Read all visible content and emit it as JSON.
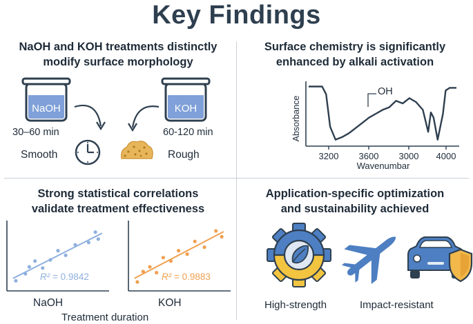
{
  "title": "Key Findings",
  "q1": {
    "heading_line1": "NaOH and KOH treatments distinctly",
    "heading_line2": "modify surface morphology",
    "beaker_left_label": "NaOH",
    "beaker_right_label": "KOH",
    "time_left": "30–60 min",
    "time_right": "60-120 min",
    "result_left": "Smooth",
    "result_right": "Rough",
    "colors": {
      "naoh_liquid": "#7fa0d8",
      "koh_liquid": "#7fa0d8",
      "powder": "#e8b65a"
    }
  },
  "q2": {
    "heading_line1": "Surface chemistry is significantly",
    "heading_line2": "enhanced by alkali activation",
    "peak_label": "OH",
    "chart_data": {
      "type": "line",
      "xlabel": "Wavenumbar",
      "ylabel": "Absorbance",
      "xticks": [
        "3200",
        "3600",
        "3000",
        "4000"
      ],
      "series": [
        {
          "x": [
            3100,
            3150,
            3200,
            3230,
            3260,
            3300,
            3350,
            3400,
            3450,
            3500,
            3550,
            3600,
            3650,
            3700,
            3750,
            3800,
            3850,
            3900,
            3950,
            3990,
            4010,
            4030,
            4060,
            4100,
            4120,
            4150,
            4200
          ],
          "y": [
            0.92,
            0.92,
            0.92,
            0.8,
            0.3,
            0.1,
            0.14,
            0.2,
            0.28,
            0.36,
            0.44,
            0.5,
            0.56,
            0.6,
            0.7,
            0.66,
            0.74,
            0.68,
            0.56,
            0.22,
            0.52,
            0.44,
            0.1,
            0.5,
            0.86,
            0.9,
            0.9
          ]
        }
      ]
    }
  },
  "q3": {
    "heading_line1": "Strong statistical correlations",
    "heading_line2": "validate treatment effectiveness",
    "footer": "Treatment duration",
    "chart_data": [
      {
        "type": "scatter",
        "xlabel": "NaOH",
        "annotation": "= 0.9842",
        "annotation_prefix": "R²",
        "color": "#8fb0de",
        "x": [
          1,
          2,
          2.4,
          3,
          3.8,
          4.6,
          5.4,
          6.2,
          7.2,
          8.6,
          9.3,
          9.6
        ],
        "y": [
          1.4,
          2.0,
          2.6,
          3.1,
          2.5,
          3.2,
          4.0,
          3.6,
          4.5,
          4.7,
          5.6,
          5.0
        ]
      },
      {
        "type": "scatter",
        "xlabel": "KOH",
        "annotation": "= 0.9883",
        "annotation_prefix": "R²",
        "color": "#f0a050",
        "x": [
          1,
          1.6,
          2.3,
          3,
          3.7,
          4.5,
          5.3,
          6.2,
          7,
          8,
          9.2,
          9.8
        ],
        "y": [
          1.3,
          2.2,
          2.6,
          2.1,
          3.4,
          3.1,
          4.0,
          3.7,
          4.8,
          4.3,
          5.7,
          5.2
        ]
      }
    ]
  },
  "q4": {
    "heading_line1": "Application-specific optimization",
    "heading_line2": "and sustainability achieved",
    "label_left": "High-strength",
    "label_right": "Impact-resistant",
    "colors": {
      "gear_blue": "#4d7fc2",
      "gear_yellow": "#f2c440",
      "plane": "#4d7fc2",
      "car": "#4d7fc2",
      "shield": "#f2b84a"
    }
  }
}
